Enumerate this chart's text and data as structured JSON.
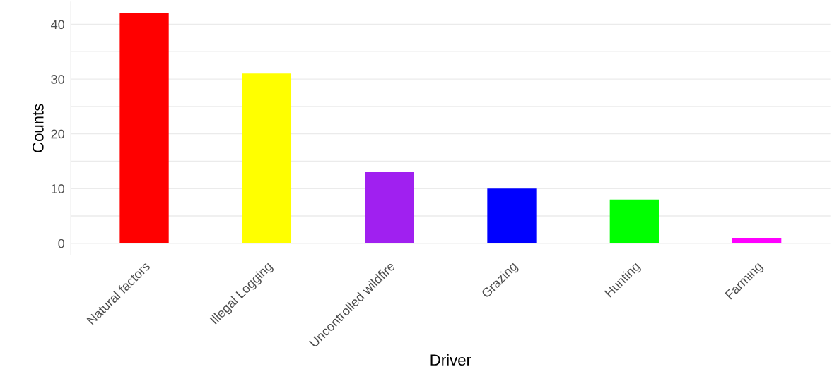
{
  "chart_data": {
    "type": "bar",
    "xlabel": "Driver",
    "ylabel": "Counts",
    "categories": [
      "Natural factors",
      "Illegal Logging",
      "Uncontrolled wildfire",
      "Grazing",
      "Hunting",
      "Farming"
    ],
    "values": [
      42,
      31,
      13,
      10,
      8,
      1
    ],
    "colors": [
      "#ff0000",
      "#ffff00",
      "#a020f0",
      "#0000ff",
      "#00ff00",
      "#ff00ff"
    ],
    "ylim": [
      -2.1,
      44.1
    ],
    "yticks": [
      0,
      {
        "value": 5,
        "label": null
      },
      10,
      {
        "value": 15,
        "label": null
      },
      20,
      {
        "value": 25,
        "label": null
      },
      30,
      {
        "value": 35,
        "label": null
      },
      40
    ],
    "grid": "y",
    "legend": false
  }
}
